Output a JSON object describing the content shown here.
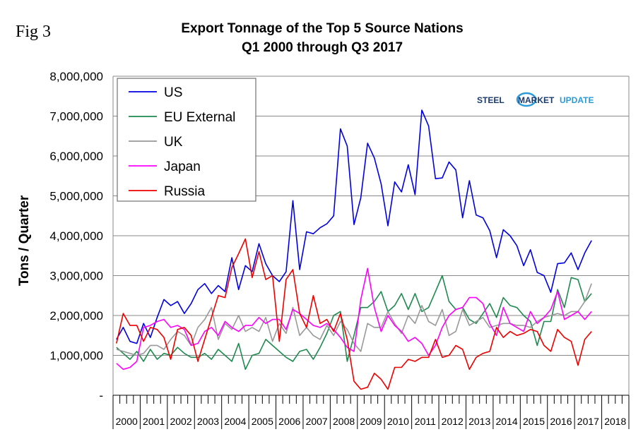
{
  "figure_label": "Fig 3",
  "logo": {
    "word1": "STEEL",
    "word2": "MARKET",
    "word3": "UPDATE",
    "color_primary": "#1a3a6e",
    "color_accent": "#2b9bd8"
  },
  "chart_data": {
    "type": "line",
    "title": "Export Tonnage of the Top 5 Source Nations",
    "subtitle": "Q1 2000 through Q3 2017",
    "ylabel": "Tons / Quarter",
    "xlabel": "",
    "ylim": [
      0,
      8000000
    ],
    "yticks": [
      0,
      1000000,
      2000000,
      3000000,
      4000000,
      5000000,
      6000000,
      7000000,
      8000000
    ],
    "ytick_labels": [
      "-",
      "1,000,000",
      "2,000,000",
      "3,000,000",
      "4,000,000",
      "5,000,000",
      "6,000,000",
      "7,000,000",
      "8,000,000"
    ],
    "year_labels": [
      "2000",
      "2001",
      "2002",
      "2003",
      "2004",
      "2005",
      "2006",
      "2007",
      "2008",
      "2009",
      "2010",
      "2011",
      "2012",
      "2013",
      "2014",
      "2015",
      "2016",
      "2017",
      "2018"
    ],
    "x_start": "Q1 2000",
    "grid": true,
    "legend_position": "top-left",
    "series": [
      {
        "name": "US",
        "color": "#0000e0",
        "values": [
          1400000,
          1700000,
          1350000,
          1300000,
          1800000,
          1450000,
          1950000,
          2400000,
          2250000,
          2350000,
          2050000,
          2300000,
          2650000,
          2800000,
          2550000,
          2750000,
          2600000,
          3450000,
          2650000,
          3250000,
          3100000,
          3800000,
          3300000,
          3000000,
          2850000,
          3100000,
          4880000,
          3150000,
          4100000,
          4050000,
          4200000,
          4300000,
          4500000,
          6680000,
          6250000,
          4280000,
          4950000,
          6320000,
          5950000,
          5300000,
          4250000,
          5350000,
          5100000,
          5780000,
          5030000,
          7150000,
          6750000,
          5430000,
          5450000,
          5850000,
          5650000,
          4450000,
          5380000,
          4520000,
          4450000,
          4130000,
          3450000,
          4150000,
          4000000,
          3750000,
          3250000,
          3650000,
          3080000,
          3000000,
          2580000,
          3300000,
          3320000,
          3570000,
          3150000,
          3570000,
          3880000
        ]
      },
      {
        "name": "EU External",
        "color": "#1e8a4e",
        "values": [
          1200000,
          1050000,
          900000,
          1100000,
          850000,
          1150000,
          900000,
          1050000,
          1000000,
          1200000,
          1050000,
          950000,
          950000,
          1050000,
          900000,
          1150000,
          1000000,
          850000,
          1300000,
          650000,
          1000000,
          1050000,
          1400000,
          1250000,
          1100000,
          950000,
          850000,
          1100000,
          1150000,
          900000,
          1200000,
          1550000,
          2000000,
          2100000,
          850000,
          1500000,
          2200000,
          2200000,
          2350000,
          2600000,
          2100000,
          2250000,
          2550000,
          2150000,
          2550000,
          2100000,
          2200000,
          2600000,
          3000000,
          2350000,
          2150000,
          2200000,
          1900000,
          1800000,
          2050000,
          2300000,
          1950000,
          2450000,
          2250000,
          2200000,
          2000000,
          1850000,
          1250000,
          1850000,
          1850000,
          2650000,
          2200000,
          2950000,
          2900000,
          2350000,
          2550000
        ]
      },
      {
        "name": "UK",
        "color": "#999999",
        "values": [
          1150000,
          1100000,
          1050000,
          1000000,
          1050000,
          1250000,
          1250000,
          1150000,
          1400000,
          1600000,
          1500000,
          1250000,
          1700000,
          1900000,
          2200000,
          1400000,
          1800000,
          1650000,
          2000000,
          1600000,
          1700000,
          1600000,
          1950000,
          1350000,
          1800000,
          1550000,
          2200000,
          1500000,
          1700000,
          1500000,
          1400000,
          1750000,
          1500000,
          1850000,
          1650000,
          1300000,
          1100000,
          1800000,
          1700000,
          1700000,
          2100000,
          1800000,
          1550000,
          2000000,
          1800000,
          2250000,
          1850000,
          1750000,
          2150000,
          1500000,
          1600000,
          2150000,
          1750000,
          1850000,
          1950000,
          1700000,
          1750000,
          1800000,
          1800000,
          1750000,
          1750000,
          1700000,
          1850000,
          1950000,
          2000000,
          2050000,
          2000000,
          2100000,
          2100000,
          2350000,
          2800000
        ]
      },
      {
        "name": "Japan",
        "color": "#ff00ff",
        "values": [
          800000,
          650000,
          700000,
          850000,
          1700000,
          1750000,
          1850000,
          1900000,
          1700000,
          1750000,
          1650000,
          1250000,
          1300000,
          1600000,
          1700000,
          1500000,
          1850000,
          1700000,
          1600000,
          1750000,
          1750000,
          1950000,
          1800000,
          1900000,
          1900000,
          1650000,
          2150000,
          2050000,
          1900000,
          1750000,
          1700000,
          1800000,
          1650000,
          1450000,
          1200000,
          1100000,
          2400000,
          3180000,
          2200000,
          1600000,
          2000000,
          1750000,
          1600000,
          1350000,
          1450000,
          1300000,
          1000000,
          1250000,
          1700000,
          2000000,
          2150000,
          2200000,
          2450000,
          2450000,
          2300000,
          1800000,
          1500000,
          2200000,
          1800000,
          1700000,
          1600000,
          2100000,
          1800000,
          1950000,
          2150000,
          2600000,
          1900000,
          2000000,
          2100000,
          1900000,
          2100000
        ]
      },
      {
        "name": "Russia",
        "color": "#ee0000",
        "values": [
          1300000,
          2050000,
          1750000,
          1750000,
          1350000,
          1700000,
          1650000,
          1450000,
          900000,
          1650000,
          1700000,
          1500000,
          850000,
          1400000,
          1950000,
          2500000,
          2450000,
          3200000,
          3550000,
          3920000,
          2950000,
          3600000,
          2900000,
          3000000,
          1350000,
          2900000,
          3150000,
          2050000,
          1700000,
          2500000,
          1800000,
          1900000,
          1600000,
          2050000,
          1400000,
          350000,
          150000,
          200000,
          550000,
          400000,
          150000,
          700000,
          700000,
          900000,
          850000,
          950000,
          950000,
          1400000,
          950000,
          1000000,
          1250000,
          1150000,
          650000,
          950000,
          1050000,
          1100000,
          1700000,
          1450000,
          1600000,
          1500000,
          1550000,
          1650000,
          1600000,
          1250000,
          1100000,
          1650000,
          1450000,
          1350000,
          750000,
          1400000,
          1600000
        ]
      }
    ]
  }
}
